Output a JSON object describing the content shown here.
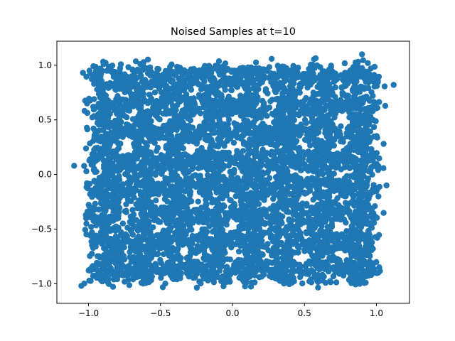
{
  "chart_data": {
    "type": "scatter",
    "title": "Noised Samples at t=10",
    "xlabel": "",
    "ylabel": "",
    "xlim": [
      -1.22,
      1.23
    ],
    "ylim": [
      -1.18,
      1.22
    ],
    "grid": false,
    "marker_color": "#1f77b4",
    "x_ticks": [
      -1.0,
      -0.5,
      0.0,
      0.5,
      1.0
    ],
    "x_tick_labels": [
      "−1.0",
      "−0.5",
      "0.0",
      "0.5",
      "1.0"
    ],
    "y_ticks": [
      1.0,
      0.5,
      0.0,
      -0.5,
      -1.0
    ],
    "y_tick_labels": [
      "1.0",
      "0.5",
      "0.0",
      "−0.5",
      "−1.0"
    ],
    "cluster_pattern": {
      "grid_centers_x": [
        -0.875,
        -0.625,
        -0.375,
        -0.125,
        0.125,
        0.375,
        0.625,
        0.875
      ],
      "grid_centers_y": [
        0.875,
        0.625,
        0.375,
        0.125,
        -0.125,
        -0.375,
        -0.625,
        -0.875
      ],
      "ring_radius": 0.09,
      "noise_std": 0.035,
      "points_per_cluster": 95
    },
    "outliers": [
      [
        -1.1,
        0.08
      ],
      [
        1.12,
        0.82
      ],
      [
        -1.05,
        -1.02
      ],
      [
        0.9,
        1.1
      ],
      [
        1.05,
        0.28
      ],
      [
        1.07,
        -0.1
      ]
    ]
  }
}
